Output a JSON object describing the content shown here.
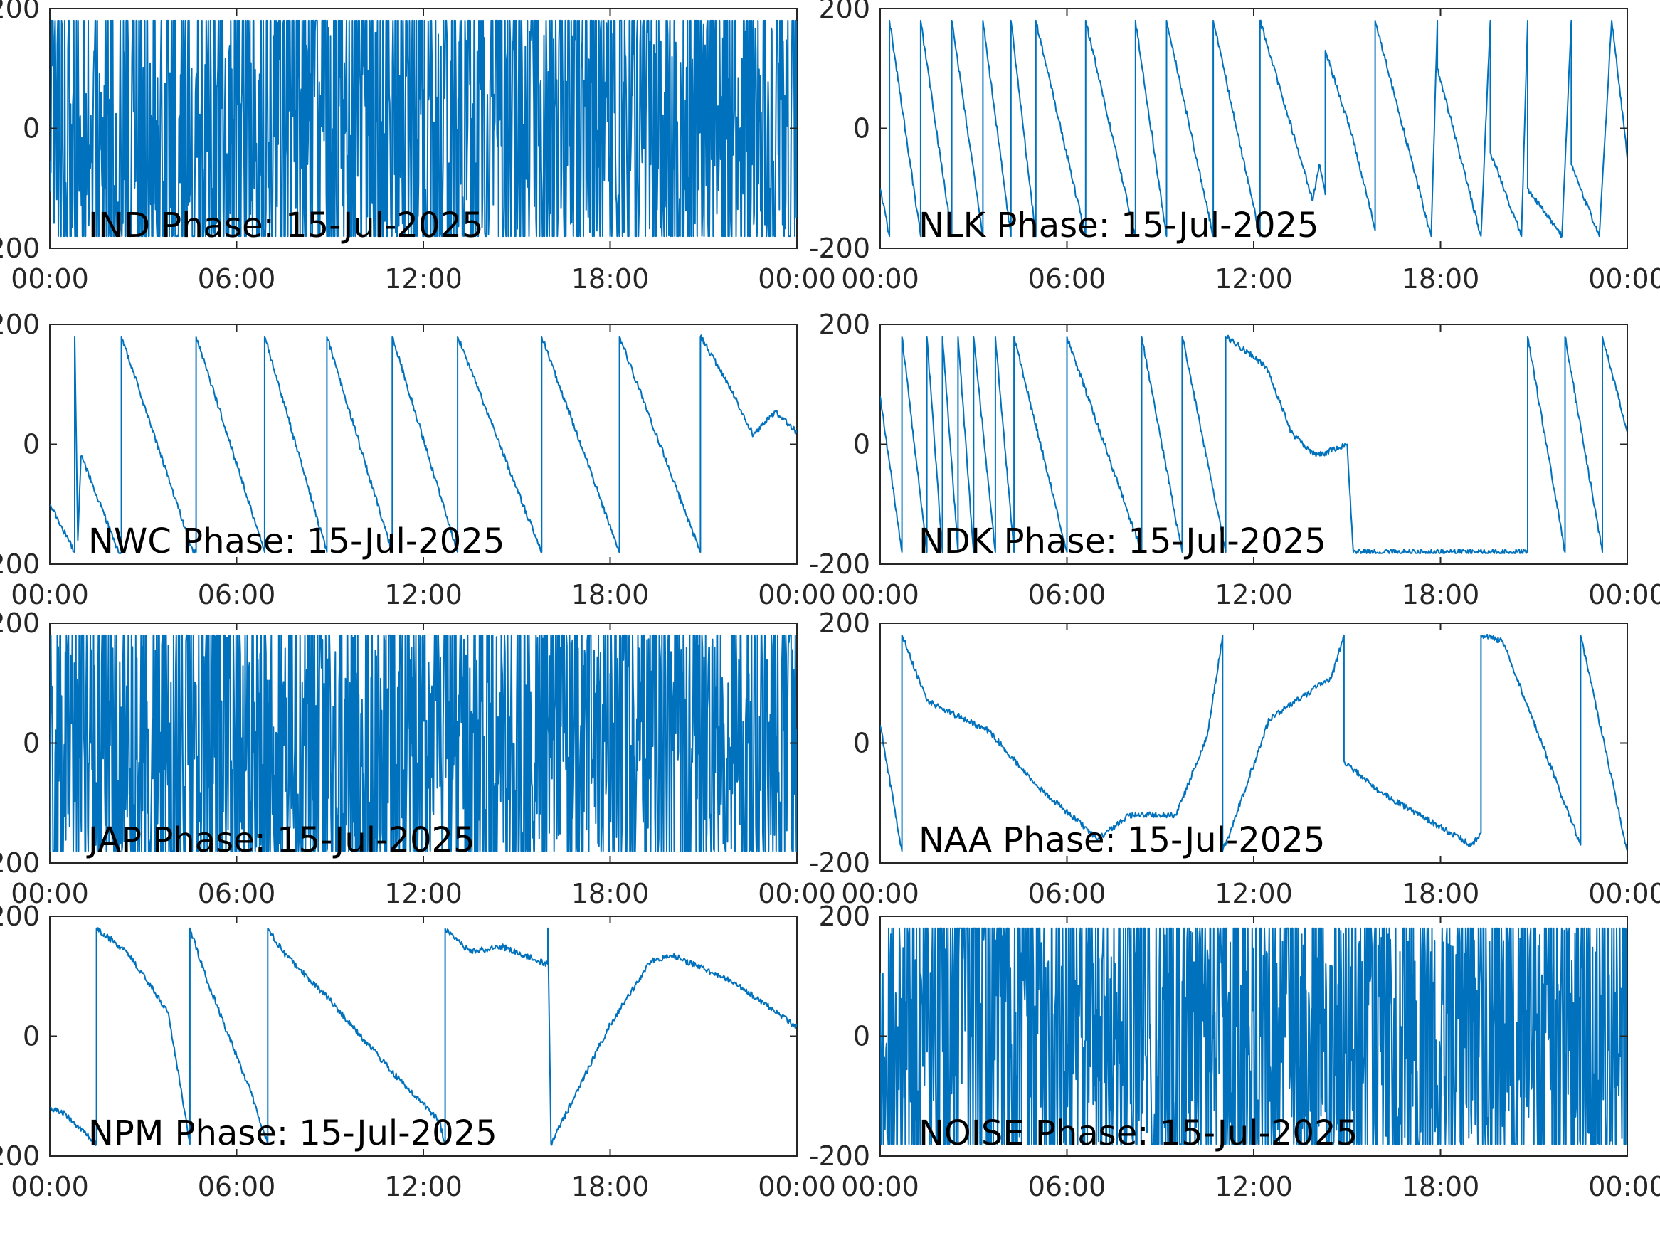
{
  "colors": {
    "trace": "#0072BD",
    "axes": "#262626",
    "background": "#ffffff"
  },
  "chart_data": [
    {
      "type": "line",
      "title": "IND Phase: 15-Jul-2025",
      "x_ticks": [
        "00:00",
        "06:00",
        "12:00",
        "18:00",
        "00:00"
      ],
      "y_ticks": [
        "-200",
        "0",
        "200"
      ],
      "xlim": [
        0,
        24
      ],
      "ylim": [
        -200,
        200
      ],
      "style": "noise",
      "series": [
        {
          "x": [
            0,
            3,
            6,
            9,
            11,
            12,
            18,
            24
          ],
          "y": [
            0,
            -60,
            -40,
            60,
            0,
            0,
            0,
            0
          ]
        }
      ]
    },
    {
      "type": "line",
      "title": "NLK Phase: 15-Jul-2025",
      "x_ticks": [
        "00:00",
        "06:00",
        "12:00",
        "18:00",
        "00:00"
      ],
      "y_ticks": [
        "-200",
        "0",
        "200"
      ],
      "xlim": [
        0,
        24
      ],
      "ylim": [
        -200,
        200
      ],
      "style": "sawtooth",
      "series": [
        {
          "x": [
            0,
            0.3,
            0.3,
            1.3,
            1.3,
            2.3,
            2.3,
            3.3,
            3.3,
            4.2,
            4.2,
            5.0,
            5.0,
            6.6,
            6.6,
            8.2,
            8.2,
            9.2,
            9.2,
            10.7,
            10.7,
            12.2,
            12.2,
            13.9,
            14.1,
            14.3,
            14.3,
            15.2,
            15.9,
            15.9,
            17.7,
            17.9,
            17.9,
            19.3,
            19.6,
            19.6,
            20.6,
            20.8,
            20.8,
            21.9,
            22.2,
            22.2,
            23.1,
            23.5,
            23.9,
            24
          ],
          "y": [
            -100,
            -180,
            180,
            -180,
            180,
            -180,
            180,
            -180,
            180,
            -180,
            180,
            -180,
            180,
            -180,
            180,
            -180,
            180,
            -180,
            180,
            -180,
            180,
            -180,
            180,
            -120,
            -60,
            -110,
            130,
            -20,
            -170,
            180,
            -180,
            180,
            100,
            -180,
            180,
            -40,
            -180,
            180,
            -100,
            -180,
            180,
            -60,
            -180,
            180,
            0,
            -50
          ]
        }
      ]
    },
    {
      "type": "line",
      "title": "NWC Phase: 15-Jul-2025",
      "x_ticks": [
        "00:00",
        "06:00",
        "12:00",
        "18:00",
        "00:00"
      ],
      "y_ticks": [
        "-200",
        "0",
        "200"
      ],
      "xlim": [
        0,
        24
      ],
      "ylim": [
        -200,
        200
      ],
      "style": "sawtooth",
      "series": [
        {
          "x": [
            0,
            0.8,
            0.8,
            0.9,
            1.0,
            1.1,
            2.2,
            2.3,
            2.3,
            4.6,
            4.7,
            4.7,
            6.9,
            6.9,
            8.9,
            8.9,
            11.0,
            11.0,
            13.1,
            13.1,
            15.8,
            15.8,
            18.3,
            18.3,
            20.9,
            20.9,
            21.8,
            22.6,
            23.3,
            24
          ],
          "y": [
            -100,
            -180,
            180,
            -160,
            -20,
            -30,
            -180,
            -180,
            180,
            -180,
            -180,
            180,
            -180,
            180,
            -180,
            180,
            -180,
            180,
            -180,
            180,
            -180,
            180,
            -180,
            180,
            -180,
            180,
            100,
            15,
            55,
            20
          ]
        }
      ]
    },
    {
      "type": "line",
      "title": "NDK Phase: 15-Jul-2025",
      "x_ticks": [
        "00:00",
        "06:00",
        "12:00",
        "18:00",
        "00:00"
      ],
      "y_ticks": [
        "-200",
        "0",
        "200"
      ],
      "xlim": [
        0,
        24
      ],
      "ylim": [
        -200,
        200
      ],
      "style": "sawtooth",
      "series": [
        {
          "x": [
            0,
            0.7,
            0.7,
            1.5,
            1.5,
            2.0,
            2.0,
            2.5,
            2.5,
            3.0,
            3.0,
            3.7,
            3.7,
            4.3,
            4.3,
            6.0,
            6.0,
            8.4,
            8.4,
            9.7,
            9.7,
            11.1,
            11.1,
            12.4,
            13.2,
            14.0,
            15.0,
            15.2,
            20.8,
            20.8,
            22.0,
            22.0,
            23.2,
            23.2,
            24
          ],
          "y": [
            80,
            -180,
            180,
            -180,
            180,
            -180,
            180,
            -180,
            180,
            -180,
            180,
            -180,
            180,
            -180,
            180,
            -180,
            180,
            -180,
            180,
            -180,
            180,
            -180,
            180,
            130,
            20,
            -20,
            0,
            -180,
            -180,
            180,
            -180,
            180,
            -180,
            180,
            20
          ]
        }
      ]
    },
    {
      "type": "line",
      "title": "JAP Phase: 15-Jul-2025",
      "x_ticks": [
        "00:00",
        "06:00",
        "12:00",
        "18:00",
        "00:00"
      ],
      "y_ticks": [
        "-200",
        "0",
        "200"
      ],
      "xlim": [
        0,
        24
      ],
      "ylim": [
        -200,
        200
      ],
      "style": "noise",
      "series": [
        {
          "x": [
            0,
            6,
            12,
            18,
            24
          ],
          "y": [
            0,
            0,
            0,
            0,
            0
          ]
        }
      ]
    },
    {
      "type": "line",
      "title": "NAA Phase: 15-Jul-2025",
      "x_ticks": [
        "00:00",
        "06:00",
        "12:00",
        "18:00",
        "00:00"
      ],
      "y_ticks": [
        "-200",
        "0",
        "200"
      ],
      "xlim": [
        0,
        24
      ],
      "ylim": [
        -200,
        200
      ],
      "style": "sawtooth",
      "series": [
        {
          "x": [
            0,
            0.7,
            0.7,
            1.5,
            3.5,
            5.0,
            7.0,
            8.0,
            9.5,
            10.5,
            11.0,
            11.0,
            11.3,
            12.5,
            14.5,
            14.9,
            14.9,
            16.0,
            19.0,
            19.3,
            19.3,
            20.0,
            22.5,
            22.5,
            24
          ],
          "y": [
            30,
            -180,
            180,
            70,
            20,
            -70,
            -160,
            -120,
            -120,
            10,
            180,
            -180,
            -140,
            40,
            110,
            180,
            -30,
            -80,
            -170,
            -150,
            180,
            170,
            -170,
            180,
            -180
          ]
        }
      ]
    },
    {
      "type": "line",
      "title": "NPM Phase: 15-Jul-2025",
      "x_ticks": [
        "00:00",
        "06:00",
        "12:00",
        "18:00",
        "00:00"
      ],
      "y_ticks": [
        "-200",
        "0",
        "200"
      ],
      "xlim": [
        0,
        24
      ],
      "ylim": [
        -200,
        200
      ],
      "style": "sawtooth",
      "series": [
        {
          "x": [
            0,
            0.5,
            1.5,
            1.5,
            2.5,
            3.8,
            4.5,
            4.5,
            5.0,
            6.5,
            7.0,
            7.0,
            7.5,
            9.0,
            11.0,
            12.5,
            12.7,
            12.7,
            13.5,
            14.5,
            16.0,
            16.0,
            16.1,
            18.0,
            19.3,
            20.0,
            22.0,
            24.0
          ],
          "y": [
            -120,
            -130,
            -180,
            180,
            140,
            40,
            -180,
            180,
            100,
            -100,
            -180,
            180,
            140,
            60,
            -60,
            -140,
            -180,
            180,
            140,
            150,
            120,
            180,
            -180,
            20,
            125,
            135,
            90,
            15
          ]
        }
      ]
    },
    {
      "type": "line",
      "title": "NOISE Phase: 15-Jul-2025",
      "x_ticks": [
        "00:00",
        "06:00",
        "12:00",
        "18:00",
        "00:00"
      ],
      "y_ticks": [
        "-200",
        "0",
        "200"
      ],
      "xlim": [
        0,
        24
      ],
      "ylim": [
        -200,
        200
      ],
      "style": "noise",
      "series": [
        {
          "x": [
            0,
            2,
            3.5,
            4,
            12,
            24
          ],
          "y": [
            0,
            60,
            100,
            0,
            0,
            0
          ]
        }
      ]
    }
  ]
}
